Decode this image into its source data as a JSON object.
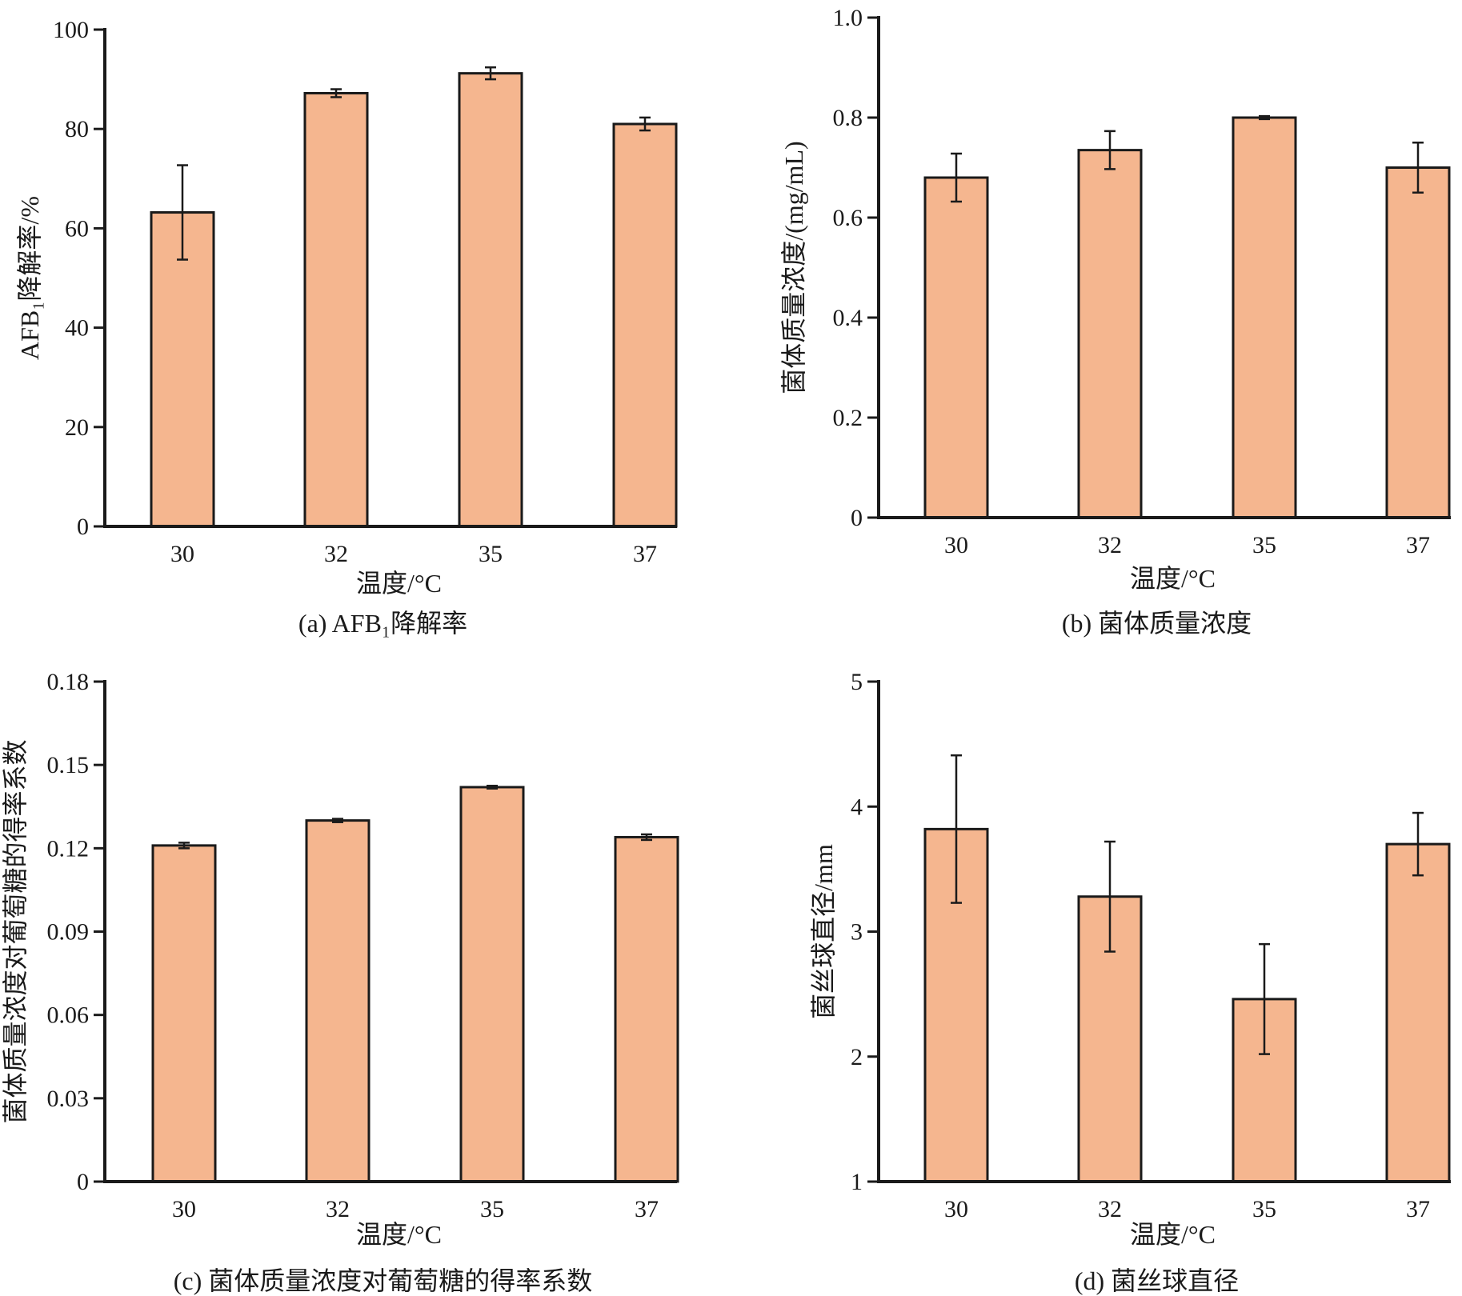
{
  "chart_data": [
    {
      "id": "a",
      "type": "bar",
      "caption": "(a) AFB₁降解率",
      "xlabel": "温度/°C",
      "ylabel": "AFB₁降解率/%",
      "categories": [
        "30",
        "32",
        "35",
        "37"
      ],
      "values": [
        63.2,
        87.2,
        91.2,
        81.0
      ],
      "errors": [
        9.5,
        0.8,
        1.2,
        1.3
      ],
      "ylim": [
        0,
        100
      ],
      "yticks": [
        "0",
        "20",
        "40",
        "60",
        "80",
        "100"
      ],
      "ytick_values": [
        0,
        20,
        40,
        60,
        80,
        100
      ],
      "bar_color": "#f5b68f"
    },
    {
      "id": "b",
      "type": "bar",
      "caption": "(b) 菌体质量浓度",
      "xlabel": "温度/°C",
      "ylabel": "菌体质量浓度/(mg/mL)",
      "categories": [
        "30",
        "32",
        "35",
        "37"
      ],
      "values": [
        0.68,
        0.735,
        0.8,
        0.7
      ],
      "errors": [
        0.048,
        0.038,
        0.003,
        0.05
      ],
      "ylim": [
        0,
        1.0
      ],
      "yticks": [
        "0",
        "0.2",
        "0.4",
        "0.6",
        "0.8",
        "1.0"
      ],
      "ytick_values": [
        0,
        0.2,
        0.4,
        0.6,
        0.8,
        1.0
      ],
      "bar_color": "#f5b68f"
    },
    {
      "id": "c",
      "type": "bar",
      "caption": "(c) 菌体质量浓度对葡萄糖的得率系数",
      "xlabel": "温度/°C",
      "ylabel": "菌体质量浓度对葡萄糖的得率系数",
      "categories": [
        "30",
        "32",
        "35",
        "37"
      ],
      "values": [
        0.121,
        0.13,
        0.142,
        0.124
      ],
      "errors": [
        0.001,
        0.0006,
        0.0005,
        0.001
      ],
      "ylim": [
        0,
        0.18
      ],
      "yticks": [
        "0",
        "0.03",
        "0.06",
        "0.09",
        "0.12",
        "0.15",
        "0.18"
      ],
      "ytick_values": [
        0,
        0.03,
        0.06,
        0.09,
        0.12,
        0.15,
        0.18
      ],
      "bar_color": "#f5b68f"
    },
    {
      "id": "d",
      "type": "bar",
      "caption": "(d) 菌丝球直径",
      "xlabel": "温度/°C",
      "ylabel": "菌丝球直径/mm",
      "categories": [
        "30",
        "32",
        "35",
        "37"
      ],
      "values": [
        3.82,
        3.28,
        2.46,
        3.7
      ],
      "errors": [
        0.59,
        0.44,
        0.44,
        0.25
      ],
      "ylim": [
        1,
        5
      ],
      "yticks": [
        "1",
        "2",
        "3",
        "4",
        "5"
      ],
      "ytick_values": [
        1,
        2,
        3,
        4,
        5
      ],
      "bar_color": "#f5b68f"
    }
  ]
}
